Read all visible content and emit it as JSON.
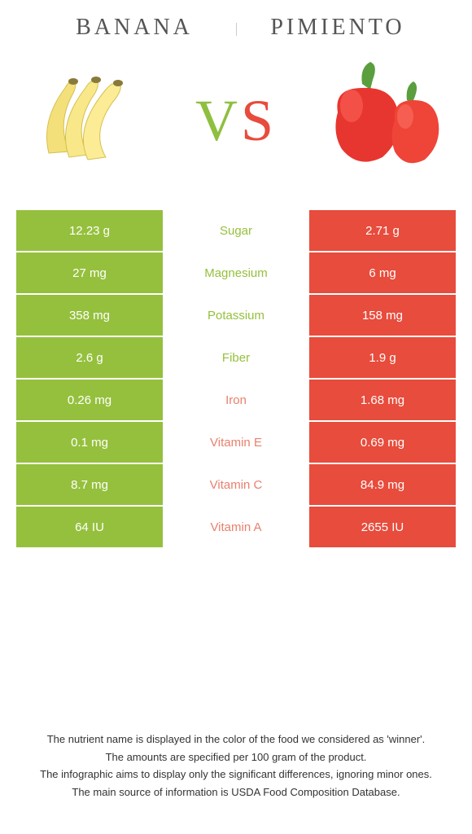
{
  "titles": {
    "left": "Banana",
    "right": "Pimiento"
  },
  "vs": {
    "v": "V",
    "s": "S"
  },
  "colors": {
    "left": "#95c03d",
    "right": "#e74c3c",
    "winner_left": "#95c03d",
    "winner_right": "#e9806e"
  },
  "rows": [
    {
      "left": "12.23 g",
      "label": "Sugar",
      "right": "2.71 g",
      "winner": "left"
    },
    {
      "left": "27 mg",
      "label": "Magnesium",
      "right": "6 mg",
      "winner": "left"
    },
    {
      "left": "358 mg",
      "label": "Potassium",
      "right": "158 mg",
      "winner": "left"
    },
    {
      "left": "2.6 g",
      "label": "Fiber",
      "right": "1.9 g",
      "winner": "left"
    },
    {
      "left": "0.26 mg",
      "label": "Iron",
      "right": "1.68 mg",
      "winner": "right"
    },
    {
      "left": "0.1 mg",
      "label": "Vitamin E",
      "right": "0.69 mg",
      "winner": "right"
    },
    {
      "left": "8.7 mg",
      "label": "Vitamin C",
      "right": "84.9 mg",
      "winner": "right"
    },
    {
      "left": "64 IU",
      "label": "Vitamin A",
      "right": "2655 IU",
      "winner": "right"
    }
  ],
  "footer": [
    "The nutrient name is displayed in the color of the food we considered as 'winner'.",
    "The amounts are specified per 100 gram of the product.",
    "The infographic aims to display only the significant differences, ignoring minor ones.",
    "The main source of information is USDA Food Composition Database."
  ]
}
